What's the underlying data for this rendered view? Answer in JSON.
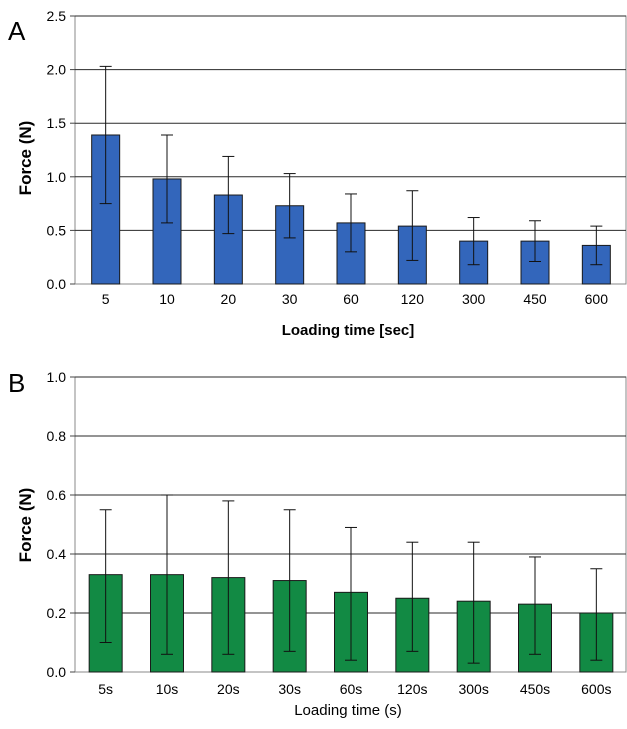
{
  "chart_data": [
    {
      "panel": "A",
      "type": "bar",
      "categories": [
        "5",
        "10",
        "20",
        "30",
        "60",
        "120",
        "300",
        "450",
        "600"
      ],
      "values": [
        1.39,
        0.98,
        0.83,
        0.73,
        0.57,
        0.54,
        0.4,
        0.4,
        0.36
      ],
      "error_upper": [
        2.03,
        1.39,
        1.19,
        1.03,
        0.84,
        0.87,
        0.62,
        0.59,
        0.54
      ],
      "error_lower": [
        0.75,
        0.57,
        0.47,
        0.43,
        0.3,
        0.22,
        0.18,
        0.21,
        0.18
      ],
      "xlabel": "Loading time [sec]",
      "ylabel": "Force (N)",
      "ylim": [
        0,
        2.5
      ],
      "yticks": [
        "0.0",
        "0.5",
        "1.0",
        "1.5",
        "2.0",
        "2.5"
      ],
      "grid": true,
      "bar_color": "#3366bb"
    },
    {
      "panel": "B",
      "type": "bar",
      "categories": [
        "5s",
        "10s",
        "20s",
        "30s",
        "60s",
        "120s",
        "300s",
        "450s",
        "600s"
      ],
      "values": [
        0.33,
        0.33,
        0.32,
        0.31,
        0.27,
        0.25,
        0.24,
        0.23,
        0.2
      ],
      "error_upper": [
        0.55,
        0.6,
        0.58,
        0.55,
        0.49,
        0.44,
        0.44,
        0.39,
        0.35
      ],
      "error_lower": [
        0.1,
        0.06,
        0.06,
        0.07,
        0.04,
        0.07,
        0.03,
        0.06,
        0.04
      ],
      "xlabel": "Loading time (s)",
      "ylabel": "Force (N)",
      "ylim": [
        0,
        1.0
      ],
      "yticks": [
        "0.0",
        "0.2",
        "0.4",
        "0.6",
        "0.8",
        "1.0"
      ],
      "grid": true,
      "bar_color": "#128a44"
    }
  ]
}
